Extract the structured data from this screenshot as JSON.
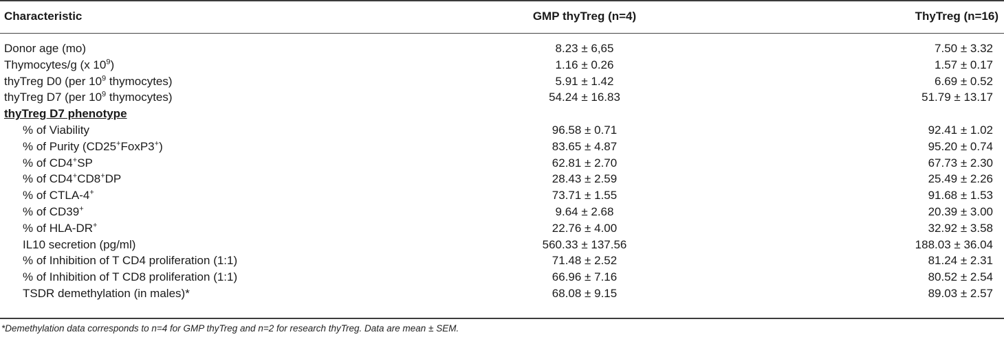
{
  "header": {
    "characteristic": "Characteristic",
    "gmp": "GMP thyTreg (n=4)",
    "thy": "ThyTreg (n=16)"
  },
  "rows": [
    {
      "label": "Donor age (mo)",
      "gmp": "8.23 ± 6,65",
      "thy": "7.50 ± 3.32"
    },
    {
      "label_pre": "Thymocytes/g (x 10",
      "label_sup": "9",
      "label_post": ")",
      "gmp": "1.16 ± 0.26",
      "thy": "1.57 ± 0.17"
    },
    {
      "label_pre": "thyTreg D0 (per 10",
      "label_sup": "9",
      "label_post": " thymocytes)",
      "gmp": "5.91 ± 1.42",
      "thy": "6.69 ± 0.52"
    },
    {
      "label_pre": "thyTreg D7 (per 10",
      "label_sup": "9",
      "label_post": " thymocytes)",
      "gmp": "54.24 ± 16.83",
      "thy": "51.79 ± 13.17"
    },
    {
      "label": "thyTreg D7 phenotype"
    },
    {
      "label": "% of Viability",
      "gmp": "96.58 ± 0.71",
      "thy": "92.41 ± 1.02"
    },
    {
      "l1": "% of Purity (CD25",
      "s1": "+",
      "l2": "FoxP3",
      "s2": "+",
      "l3": ")",
      "gmp": "83.65 ± 4.87",
      "thy": "95.20 ± 0.74"
    },
    {
      "l1": "% of CD4",
      "s1": "+",
      "l2": "SP",
      "gmp": "62.81 ± 2.70",
      "thy": "67.73 ± 2.30"
    },
    {
      "l1": "% of CD4",
      "s1": "+",
      "l2": "CD8",
      "s2": "+",
      "l3": "DP",
      "gmp": "28.43 ± 2.59",
      "thy": "25.49 ± 2.26"
    },
    {
      "l1": "% of CTLA-4",
      "s1": "+",
      "gmp": "73.71 ± 1.55",
      "thy": "91.68 ± 1.53"
    },
    {
      "l1": "% of CD39",
      "s1": "+",
      "gmp": "9.64 ± 2.68",
      "thy": "20.39 ± 3.00"
    },
    {
      "l1": "% of HLA-DR",
      "s1": "+",
      "gmp": "22.76 ± 4.00",
      "thy": "32.92 ± 3.58"
    },
    {
      "label": "IL10 secretion (pg/ml)",
      "gmp": "560.33 ± 137.56",
      "thy": "188.03 ± 36.04"
    },
    {
      "label": "% of Inhibition of T CD4 proliferation (1:1)",
      "gmp": "71.48 ± 2.52",
      "thy": "81.24 ± 2.31"
    },
    {
      "label": "% of Inhibition of T CD8 proliferation (1:1)",
      "gmp": "66.96 ± 7.16",
      "thy": "80.52 ± 2.54"
    },
    {
      "label": "TSDR demethylation (in males)*",
      "gmp": "68.08 ± 9.15",
      "thy": "89.03 ± 2.57"
    }
  ],
  "footnote": "*Demethylation data corresponds to n=4 for GMP thyTreg and n=2 for research thyTreg. Data are mean ± SEM."
}
